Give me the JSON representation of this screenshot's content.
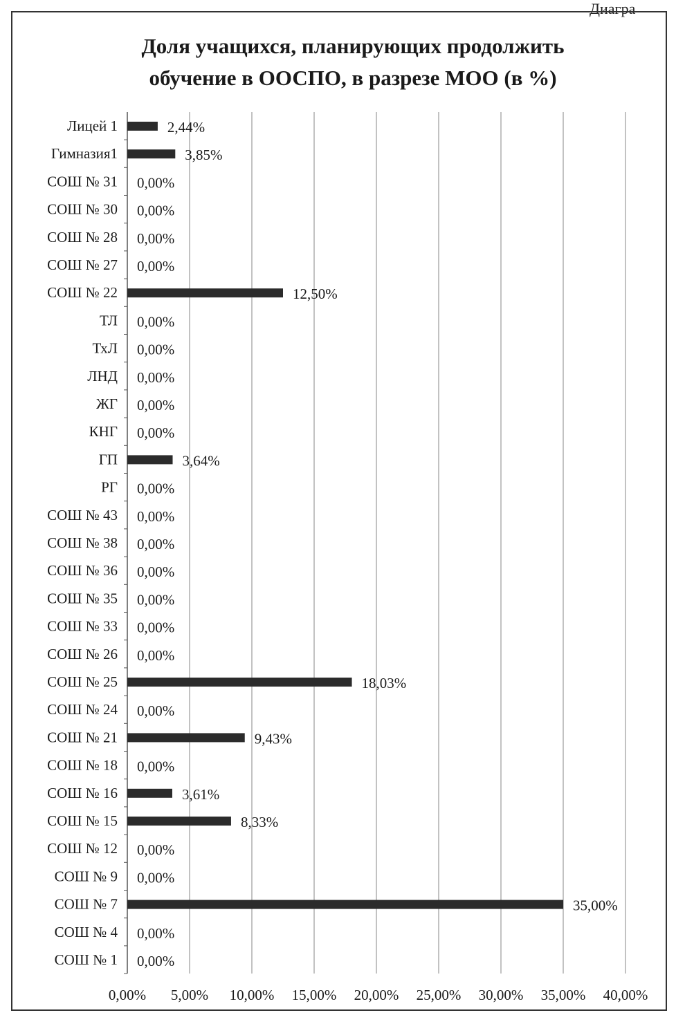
{
  "header": {
    "corner_text": "Диагра"
  },
  "chart_data": {
    "type": "bar",
    "orientation": "horizontal",
    "title_line1": "Доля учащихся, планирующих продолжить",
    "title_line2": "обучение в ООСПО, в разрезе МОО (в %)",
    "categories": [
      "Лицей 1",
      "Гимназия1",
      "СОШ № 31",
      "СОШ № 30",
      "СОШ № 28",
      "СОШ № 27",
      "СОШ № 22",
      "ТЛ",
      "ТхЛ",
      "ЛНД",
      "ЖГ",
      "КНГ",
      "ГП",
      "РГ",
      "СОШ № 43",
      "СОШ № 38",
      "СОШ № 36",
      "СОШ № 35",
      "СОШ № 33",
      "СОШ № 26",
      "СОШ № 25",
      "СОШ № 24",
      "СОШ № 21",
      "СОШ № 18",
      "СОШ № 16",
      "СОШ № 15",
      "СОШ № 12",
      "СОШ № 9",
      "СОШ № 7",
      "СОШ № 4",
      "СОШ № 1"
    ],
    "values": [
      2.44,
      3.85,
      0,
      0,
      0,
      0,
      12.5,
      0,
      0,
      0,
      0,
      0,
      3.64,
      0,
      0,
      0,
      0,
      0,
      0,
      0,
      18.03,
      0,
      9.43,
      0,
      3.61,
      8.33,
      0,
      0,
      35.0,
      0,
      0
    ],
    "value_labels": [
      "2,44%",
      "3,85%",
      "0,00%",
      "0,00%",
      "0,00%",
      "0,00%",
      "12,50%",
      "0,00%",
      "0,00%",
      "0,00%",
      "0,00%",
      "0,00%",
      "3,64%",
      "0,00%",
      "0,00%",
      "0,00%",
      "0,00%",
      "0,00%",
      "0,00%",
      "0,00%",
      "18,03%",
      "0,00%",
      "9,43%",
      "0,00%",
      "3,61%",
      "8,33%",
      "0,00%",
      "0,00%",
      "35,00%",
      "0,00%",
      "0,00%"
    ],
    "xlim": [
      0,
      40
    ],
    "x_ticks": [
      0,
      5,
      10,
      15,
      20,
      25,
      30,
      35,
      40
    ],
    "x_tick_labels": [
      "0,00%",
      "5,00%",
      "10,00%",
      "15,00%",
      "20,00%",
      "25,00%",
      "30,00%",
      "35,00%",
      "40,00%"
    ],
    "grid": "vertical",
    "bar_color": "#2b2b2b"
  }
}
